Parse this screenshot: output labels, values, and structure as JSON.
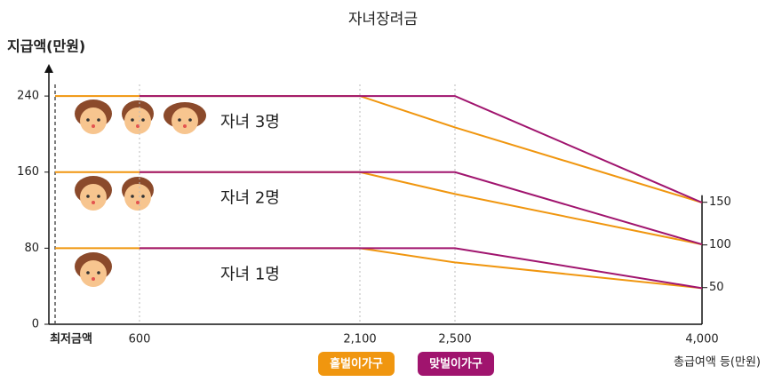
{
  "chart_data": {
    "type": "line",
    "title": "자녀장려금",
    "y_label": "지급액(만원)",
    "x_label": "총급여액 등(만원)",
    "categories": [
      "최저금액",
      "600",
      "2,100",
      "2,500",
      "4,000"
    ],
    "ylim": [
      0,
      270
    ],
    "yticks": [
      0,
      80,
      160,
      240
    ],
    "y2lim": [
      7,
      308
    ],
    "y2ticks": [
      50,
      100,
      150
    ],
    "annotations": [
      "자녀 3명",
      "자녀 2명",
      "자녀 1명"
    ],
    "series": [
      {
        "name": "홑벌이가구",
        "color": "#f0960f",
        "values": [
          [
            240,
            240,
            240,
            207,
            128
          ],
          [
            160,
            160,
            160,
            137,
            84
          ],
          [
            80,
            80,
            80,
            65,
            38
          ]
        ]
      },
      {
        "name": "맞벌이가구",
        "color": "#a0146e",
        "values": [
          [
            null,
            240,
            240,
            240,
            128
          ],
          [
            null,
            160,
            160,
            160,
            84
          ],
          [
            null,
            80,
            80,
            80,
            38
          ]
        ]
      }
    ]
  }
}
